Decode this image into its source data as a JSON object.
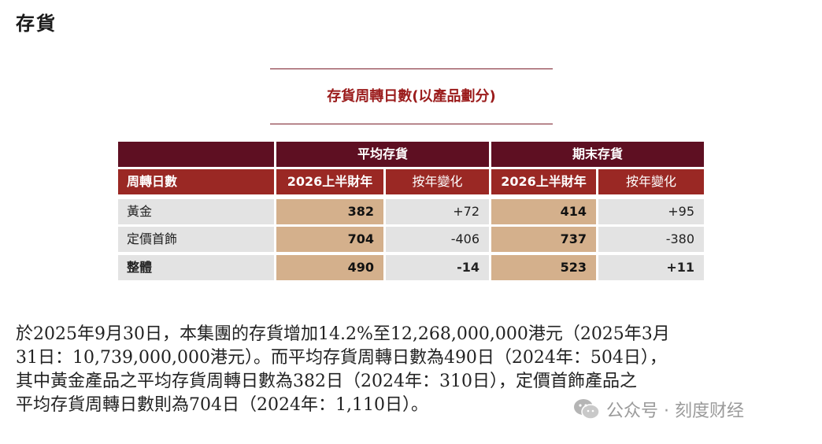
{
  "heading": "存貨",
  "table": {
    "title": "存貨周轉日數(以產品劃分)",
    "group_headers": [
      "平均存貨",
      "期末存貨"
    ],
    "column_headers": [
      "周轉日數",
      "2026上半財年",
      "按年變化",
      "2026上半財年",
      "按年變化"
    ],
    "rows": [
      {
        "label": "黃金",
        "avg": "382",
        "avg_change": "+72",
        "end": "414",
        "end_change": "+95"
      },
      {
        "label": "定價首飾",
        "avg": "704",
        "avg_change": "-406",
        "end": "737",
        "end_change": "-380"
      },
      {
        "label": "整體",
        "avg": "490",
        "avg_change": "-14",
        "end": "523",
        "end_change": "+11"
      }
    ]
  },
  "paragraph": [
    "於2025年9月30日，本集團的存貨增加14.2%至12,268,000,000港元（2025年3月",
    "31日：10,739,000,000港元）。而平均存貨周轉日數為490日（2024年：504日），",
    "其中黃金產品之平均存貨周轉日數為382日（2024年：310日），定價首飾產品之",
    "平均存貨周轉日數則為704日（2024年：1,110日）。"
  ],
  "watermark": {
    "icon": "wechat-icon",
    "text": "公众号 · 刻度财经"
  }
}
